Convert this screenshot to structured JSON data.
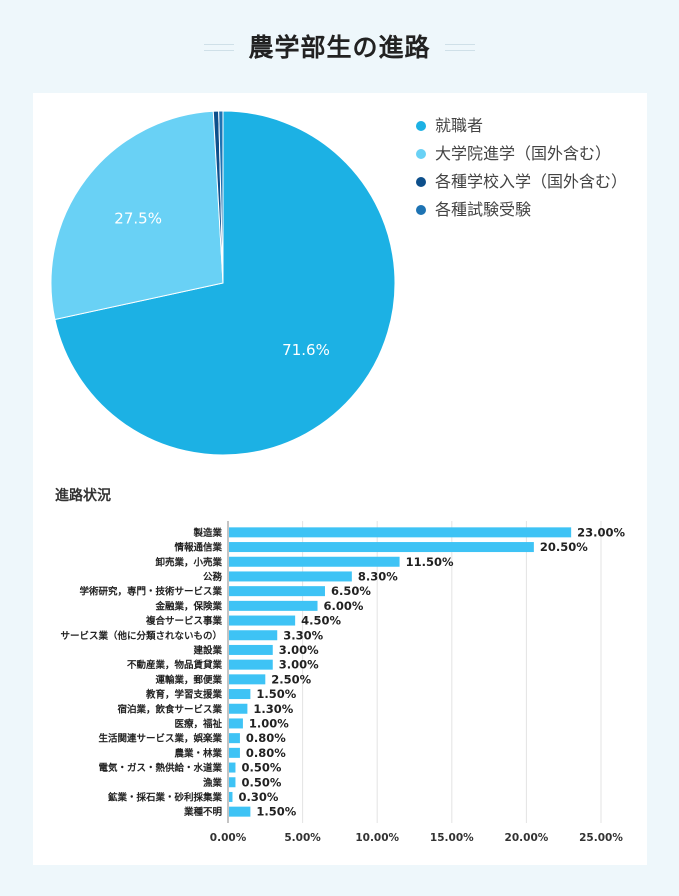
{
  "page": {
    "title": "農学部生の進路"
  },
  "colors": {
    "employment": "#1cb1e4",
    "grad_school": "#69d1f5",
    "vocational": "#0d4f8b",
    "exam": "#1d73b3",
    "bar": "#3ec3f5"
  },
  "chart_data": [
    {
      "type": "pie",
      "title": "",
      "slices": [
        {
          "label": "就職者",
          "value": 71.6,
          "color": "#1cb1e4",
          "data_label": "71.6%"
        },
        {
          "label": "大学院進学(国外含む)",
          "value": 27.5,
          "color": "#69d1f5",
          "data_label": "27.5%"
        },
        {
          "label": "各種学校入学(国外含む)",
          "value": 0.5,
          "color": "#0d4f8b",
          "data_label": ""
        },
        {
          "label": "各種試験受験",
          "value": 0.4,
          "color": "#1d73b3",
          "data_label": ""
        }
      ],
      "legend_position": "right",
      "legend": [
        {
          "label": "就職者",
          "color": "#1cb1e4"
        },
        {
          "label": "大学院進学（国外含む）",
          "color": "#69d1f5"
        },
        {
          "label": "各種学校入学（国外含む）",
          "color": "#0d4f8b"
        },
        {
          "label": "各種試験受験",
          "color": "#1d73b3"
        }
      ]
    },
    {
      "type": "bar",
      "orientation": "horizontal",
      "title": "進路状況",
      "categories": [
        "製造業",
        "情報通信業",
        "卸売業，小売業",
        "公務",
        "学術研究，専門・技術サービス業",
        "金融業，保険業",
        "複合サービス事業",
        "サービス業（他に分類されないもの）",
        "建設業",
        "不動産業，物品賃貸業",
        "運輸業，郵便業",
        "教育，学習支援業",
        "宿泊業，飲食サービス業",
        "医療，福祉",
        "生活関連サービス業，娯楽業",
        "農業・林業",
        "電気・ガス・熱供給・水道業",
        "漁業",
        "鉱業・採石業・砂利採集業",
        "業種不明"
      ],
      "values": [
        23.0,
        20.5,
        11.5,
        8.3,
        6.5,
        6.0,
        4.5,
        3.3,
        3.0,
        3.0,
        2.5,
        1.5,
        1.3,
        1.0,
        0.8,
        0.8,
        0.5,
        0.5,
        0.3,
        1.5
      ],
      "value_labels": [
        "23.00%",
        "20.50%",
        "11.50%",
        "8.30%",
        "6.50%",
        "6.00%",
        "4.50%",
        "3.30%",
        "3.00%",
        "3.00%",
        "2.50%",
        "1.50%",
        "1.30%",
        "1.00%",
        "0.80%",
        "0.80%",
        "0.50%",
        "0.50%",
        "0.30%",
        "1.50%"
      ],
      "xlim": [
        0,
        25
      ],
      "x_ticks": [
        0,
        5,
        10,
        15,
        20,
        25
      ],
      "x_tick_labels": [
        "0.00%",
        "5.00%",
        "10.00%",
        "15.00%",
        "20.00%",
        "25.00%"
      ],
      "grid": true,
      "color": "#3ec3f5"
    }
  ]
}
